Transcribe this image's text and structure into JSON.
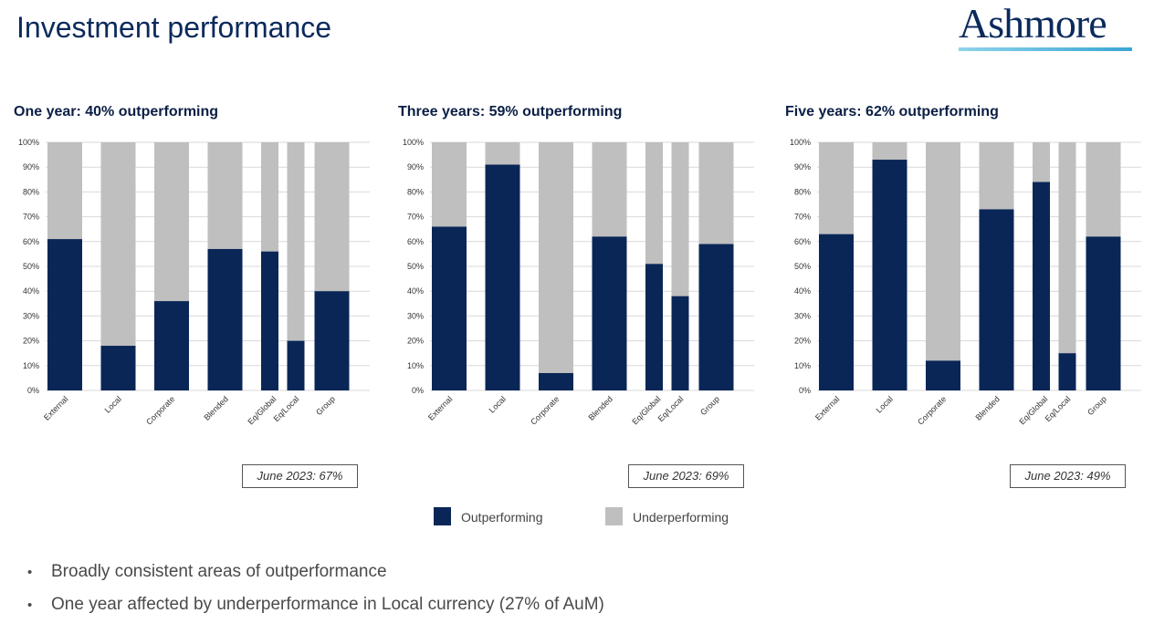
{
  "header": {
    "title": "Investment performance",
    "logo": "Ashmore"
  },
  "colors": {
    "outperforming": "#0a2657",
    "underperforming": "#bfbfbf",
    "grid": "#d9d9d9"
  },
  "legend": {
    "outperforming": "Outperforming",
    "underperforming": "Underperforming"
  },
  "chart_data": [
    {
      "type": "bar",
      "stacked": true,
      "title": "One year: 40% outperforming",
      "note": "June 2023: 67%",
      "ylim": [
        0,
        100
      ],
      "yticks": [
        "0%",
        "10%",
        "20%",
        "30%",
        "40%",
        "50%",
        "60%",
        "70%",
        "80%",
        "90%",
        "100%"
      ],
      "categories": [
        "External",
        "Local",
        "Corporate",
        "Blended",
        "Eq/Global",
        "Eq/Local",
        "Group"
      ],
      "series": [
        {
          "name": "Outperforming",
          "values": [
            61,
            18,
            36,
            57,
            56,
            20,
            40
          ]
        },
        {
          "name": "Underperforming",
          "values": [
            39,
            82,
            64,
            43,
            44,
            80,
            60
          ]
        }
      ]
    },
    {
      "type": "bar",
      "stacked": true,
      "title": "Three years: 59% outperforming",
      "note": "June 2023: 69%",
      "ylim": [
        0,
        100
      ],
      "yticks": [
        "0%",
        "10%",
        "20%",
        "30%",
        "40%",
        "50%",
        "60%",
        "70%",
        "80%",
        "90%",
        "100%"
      ],
      "categories": [
        "External",
        "Local",
        "Corporate",
        "Blended",
        "Eq/Global",
        "Eq/Local",
        "Group"
      ],
      "series": [
        {
          "name": "Outperforming",
          "values": [
            66,
            91,
            7,
            62,
            51,
            38,
            59
          ]
        },
        {
          "name": "Underperforming",
          "values": [
            34,
            9,
            93,
            38,
            49,
            62,
            41
          ]
        }
      ]
    },
    {
      "type": "bar",
      "stacked": true,
      "title": "Five years: 62% outperforming",
      "note": "June 2023: 49%",
      "ylim": [
        0,
        100
      ],
      "yticks": [
        "0%",
        "10%",
        "20%",
        "30%",
        "40%",
        "50%",
        "60%",
        "70%",
        "80%",
        "90%",
        "100%"
      ],
      "categories": [
        "External",
        "Local",
        "Corporate",
        "Blended",
        "Eq/Global",
        "Eq/Local",
        "Group"
      ],
      "series": [
        {
          "name": "Outperforming",
          "values": [
            63,
            93,
            12,
            73,
            84,
            15,
            62
          ]
        },
        {
          "name": "Underperforming",
          "values": [
            37,
            7,
            88,
            27,
            16,
            85,
            38
          ]
        }
      ]
    }
  ],
  "bullets": [
    "Broadly consistent areas of outperformance",
    "One year affected by underperformance in Local currency (27% of AuM)"
  ],
  "bullet_symbol": "•"
}
